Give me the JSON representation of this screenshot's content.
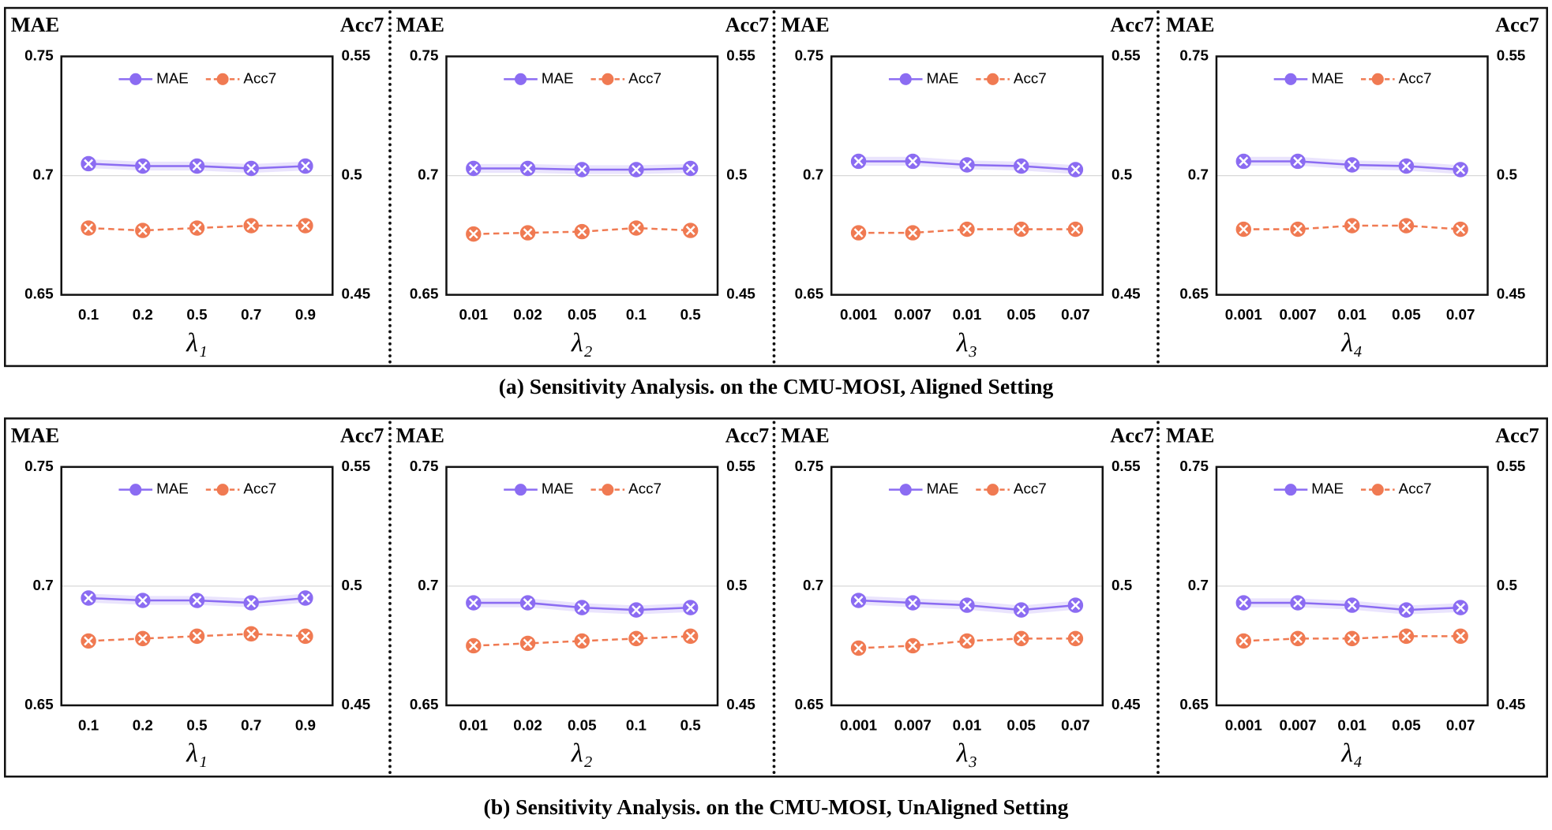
{
  "captions": [
    "(a) Sensitivity Analysis. on the CMU-MOSI, Aligned Setting",
    "(b) Sensitivity Analysis. on the CMU-MOSI, UnAligned Setting"
  ],
  "chart_data": [
    {
      "type": "line",
      "categories": [
        "0.1",
        "0.2",
        "0.5",
        "0.7",
        "0.9"
      ],
      "xlabel": "λ₁",
      "ylabel": "MAE",
      "y2label": "Acc7",
      "ylim": [
        0.65,
        0.75
      ],
      "yticks": [
        0.65,
        0.7,
        0.75
      ],
      "y2lim": [
        0.45,
        0.55
      ],
      "y2ticks": [
        0.45,
        0.5,
        0.55
      ],
      "grid": true,
      "legend": "top",
      "series": [
        {
          "name": "MAE",
          "color": "#8b6cf2",
          "values": [
            0.705,
            0.704,
            0.704,
            0.703,
            0.704
          ]
        },
        {
          "name": "Acc7",
          "color": "#f07a52",
          "axis": "y2",
          "dashed": true,
          "values": [
            0.478,
            0.477,
            0.478,
            0.479,
            0.479
          ]
        }
      ]
    },
    {
      "type": "line",
      "categories": [
        "0.01",
        "0.02",
        "0.05",
        "0.1",
        "0.5"
      ],
      "xlabel": "λ₂",
      "ylabel": "MAE",
      "y2label": "Acc7",
      "ylim": [
        0.65,
        0.75
      ],
      "yticks": [
        0.65,
        0.7,
        0.75
      ],
      "y2lim": [
        0.45,
        0.55
      ],
      "y2ticks": [
        0.45,
        0.5,
        0.55
      ],
      "grid": true,
      "legend": "top",
      "series": [
        {
          "name": "MAE",
          "color": "#8b6cf2",
          "values": [
            0.703,
            0.703,
            0.7025,
            0.7025,
            0.703
          ]
        },
        {
          "name": "Acc7",
          "color": "#f07a52",
          "axis": "y2",
          "dashed": true,
          "values": [
            0.4755,
            0.476,
            0.4765,
            0.478,
            0.477
          ]
        }
      ]
    },
    {
      "type": "line",
      "categories": [
        "0.001",
        "0.007",
        "0.01",
        "0.05",
        "0.07"
      ],
      "xlabel": "λ₃",
      "ylabel": "MAE",
      "y2label": "Acc7",
      "ylim": [
        0.65,
        0.75
      ],
      "yticks": [
        0.65,
        0.7,
        0.75
      ],
      "y2lim": [
        0.45,
        0.55
      ],
      "y2ticks": [
        0.45,
        0.5,
        0.55
      ],
      "grid": true,
      "legend": "top",
      "series": [
        {
          "name": "MAE",
          "color": "#8b6cf2",
          "values": [
            0.706,
            0.706,
            0.7045,
            0.704,
            0.7025
          ]
        },
        {
          "name": "Acc7",
          "color": "#f07a52",
          "axis": "y2",
          "dashed": true,
          "values": [
            0.476,
            0.476,
            0.4775,
            0.4775,
            0.4775
          ]
        }
      ]
    },
    {
      "type": "line",
      "categories": [
        "0.001",
        "0.007",
        "0.01",
        "0.05",
        "0.07"
      ],
      "xlabel": "λ₄",
      "ylabel": "MAE",
      "y2label": "Acc7",
      "ylim": [
        0.65,
        0.75
      ],
      "yticks": [
        0.65,
        0.7,
        0.75
      ],
      "y2lim": [
        0.45,
        0.55
      ],
      "y2ticks": [
        0.45,
        0.5,
        0.55
      ],
      "grid": true,
      "legend": "top",
      "series": [
        {
          "name": "MAE",
          "color": "#8b6cf2",
          "values": [
            0.706,
            0.706,
            0.7045,
            0.704,
            0.7025
          ]
        },
        {
          "name": "Acc7",
          "color": "#f07a52",
          "axis": "y2",
          "dashed": true,
          "values": [
            0.4775,
            0.4775,
            0.479,
            0.479,
            0.4775
          ]
        }
      ]
    },
    {
      "type": "line",
      "categories": [
        "0.1",
        "0.2",
        "0.5",
        "0.7",
        "0.9"
      ],
      "xlabel": "λ₁",
      "ylabel": "MAE",
      "y2label": "Acc7",
      "ylim": [
        0.65,
        0.75
      ],
      "yticks": [
        0.65,
        0.7,
        0.75
      ],
      "y2lim": [
        0.45,
        0.55
      ],
      "y2ticks": [
        0.45,
        0.5,
        0.55
      ],
      "grid": true,
      "legend": "top",
      "series": [
        {
          "name": "MAE",
          "color": "#8b6cf2",
          "values": [
            0.695,
            0.694,
            0.694,
            0.693,
            0.695
          ]
        },
        {
          "name": "Acc7",
          "color": "#f07a52",
          "axis": "y2",
          "dashed": true,
          "values": [
            0.477,
            0.478,
            0.479,
            0.48,
            0.479
          ]
        }
      ]
    },
    {
      "type": "line",
      "categories": [
        "0.01",
        "0.02",
        "0.05",
        "0.1",
        "0.5"
      ],
      "xlabel": "λ₂",
      "ylabel": "MAE",
      "y2label": "Acc7",
      "ylim": [
        0.65,
        0.75
      ],
      "yticks": [
        0.65,
        0.7,
        0.75
      ],
      "y2lim": [
        0.45,
        0.55
      ],
      "y2ticks": [
        0.45,
        0.5,
        0.55
      ],
      "grid": true,
      "legend": "top",
      "series": [
        {
          "name": "MAE",
          "color": "#8b6cf2",
          "values": [
            0.693,
            0.693,
            0.691,
            0.69,
            0.691
          ]
        },
        {
          "name": "Acc7",
          "color": "#f07a52",
          "axis": "y2",
          "dashed": true,
          "values": [
            0.475,
            0.476,
            0.477,
            0.478,
            0.479
          ]
        }
      ]
    },
    {
      "type": "line",
      "categories": [
        "0.001",
        "0.007",
        "0.01",
        "0.05",
        "0.07"
      ],
      "xlabel": "λ₃",
      "ylabel": "MAE",
      "y2label": "Acc7",
      "ylim": [
        0.65,
        0.75
      ],
      "yticks": [
        0.65,
        0.7,
        0.75
      ],
      "y2lim": [
        0.45,
        0.55
      ],
      "y2ticks": [
        0.45,
        0.5,
        0.55
      ],
      "grid": true,
      "legend": "top",
      "series": [
        {
          "name": "MAE",
          "color": "#8b6cf2",
          "values": [
            0.694,
            0.693,
            0.692,
            0.69,
            0.692
          ]
        },
        {
          "name": "Acc7",
          "color": "#f07a52",
          "axis": "y2",
          "dashed": true,
          "values": [
            0.474,
            0.475,
            0.477,
            0.478,
            0.478
          ]
        }
      ]
    },
    {
      "type": "line",
      "categories": [
        "0.001",
        "0.007",
        "0.01",
        "0.05",
        "0.07"
      ],
      "xlabel": "λ₄",
      "ylabel": "MAE",
      "y2label": "Acc7",
      "ylim": [
        0.65,
        0.75
      ],
      "yticks": [
        0.65,
        0.7,
        0.75
      ],
      "y2lim": [
        0.45,
        0.55
      ],
      "y2ticks": [
        0.45,
        0.5,
        0.55
      ],
      "grid": true,
      "legend": "top",
      "series": [
        {
          "name": "MAE",
          "color": "#8b6cf2",
          "values": [
            0.693,
            0.693,
            0.692,
            0.69,
            0.691
          ]
        },
        {
          "name": "Acc7",
          "color": "#f07a52",
          "axis": "y2",
          "dashed": true,
          "values": [
            0.477,
            0.478,
            0.478,
            0.479,
            0.479
          ]
        }
      ]
    }
  ]
}
